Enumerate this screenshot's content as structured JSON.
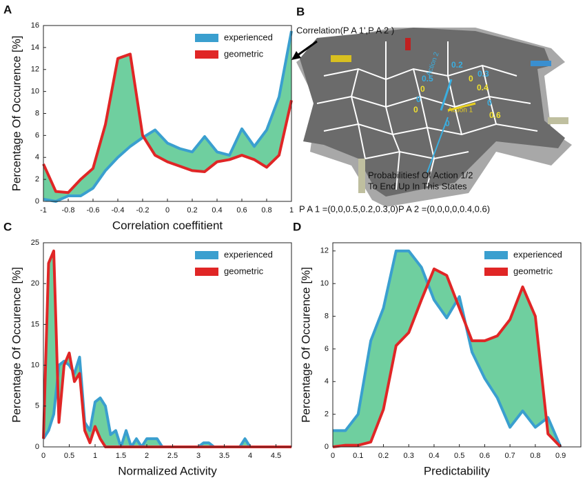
{
  "chart_data": [
    {
      "type": "line",
      "panel": "A",
      "x_label": "Correlation coeffitient",
      "y_label": "Percentage Of Occurence [%]",
      "x": [
        -1,
        -0.9,
        -0.8,
        -0.7,
        -0.6,
        -0.5,
        -0.4,
        -0.3,
        -0.2,
        -0.1,
        0,
        0.1,
        0.2,
        0.3,
        0.4,
        0.5,
        0.6,
        0.7,
        0.8,
        0.9,
        1
      ],
      "series": [
        {
          "name": "experienced",
          "color": "#3a9fcf",
          "values": [
            0.2,
            0,
            0.5,
            0.5,
            1.2,
            2.8,
            4,
            5,
            5.8,
            6.5,
            5.3,
            4.8,
            4.5,
            5.9,
            4.5,
            4.2,
            6.6,
            5,
            6.5,
            9.5,
            15.5
          ]
        },
        {
          "name": "geometric",
          "color": "#e02626",
          "values": [
            3.4,
            0.9,
            0.8,
            2,
            3,
            7,
            13,
            13.4,
            6,
            4.2,
            3.6,
            3.2,
            2.8,
            2.7,
            3.6,
            3.8,
            4.2,
            3.8,
            3.1,
            4.2,
            9.2
          ]
        }
      ],
      "fill_color": "#6fcf9f",
      "xlim": [
        -1,
        1
      ],
      "ylim": [
        0,
        16
      ],
      "xticks": [
        -1,
        -0.8,
        -0.6,
        -0.4,
        -0.2,
        0,
        0.2,
        0.4,
        0.6,
        0.8,
        1
      ],
      "yticks": [
        0,
        2,
        4,
        6,
        8,
        10,
        12,
        14,
        16
      ],
      "legend": "upper right"
    },
    {
      "type": "line",
      "panel": "C",
      "x_label": "Normalized Activity",
      "y_label": "Percentage Of Occurence [%]",
      "x": [
        0,
        0.1,
        0.2,
        0.3,
        0.4,
        0.5,
        0.6,
        0.7,
        0.8,
        0.9,
        1,
        1.1,
        1.2,
        1.3,
        1.4,
        1.5,
        1.6,
        1.7,
        1.8,
        1.9,
        2,
        2.1,
        2.2,
        2.3,
        3,
        3.1,
        3.2,
        3.3,
        3.8,
        3.9,
        4,
        4.8
      ],
      "series": [
        {
          "name": "experienced",
          "color": "#3a9fcf",
          "values": [
            1,
            2,
            4,
            10,
            10.5,
            10,
            9,
            11,
            3,
            2,
            5.5,
            6,
            5,
            1.5,
            2,
            0,
            2,
            0,
            1,
            0,
            1,
            1,
            1,
            0,
            0,
            0.5,
            0.5,
            0,
            0,
            1,
            0,
            0
          ]
        },
        {
          "name": "geometric",
          "color": "#e02626",
          "values": [
            1,
            22.5,
            24,
            3,
            10,
            11.5,
            8,
            9,
            2,
            0.5,
            2.5,
            1,
            0,
            0,
            0,
            0,
            0,
            0,
            0,
            0,
            0,
            0,
            0,
            0,
            0,
            0,
            0,
            0,
            0,
            0,
            0,
            0
          ]
        }
      ],
      "fill_color": "#6fcf9f",
      "xlim": [
        0,
        4.8
      ],
      "ylim": [
        0,
        25
      ],
      "xticks": [
        0,
        0.5,
        1,
        1.5,
        2,
        2.5,
        3,
        3.5,
        4,
        4.5
      ],
      "yticks": [
        0,
        5,
        10,
        15,
        20,
        25
      ],
      "legend": "upper right"
    },
    {
      "type": "line",
      "panel": "D",
      "x_label": "Predictability",
      "y_label": "Percentage Of Occurence [%]",
      "x": [
        0,
        0.05,
        0.1,
        0.15,
        0.2,
        0.25,
        0.3,
        0.35,
        0.4,
        0.45,
        0.5,
        0.55,
        0.6,
        0.65,
        0.7,
        0.75,
        0.8,
        0.85,
        0.9
      ],
      "series": [
        {
          "name": "experienced",
          "color": "#3a9fcf",
          "values": [
            1,
            1,
            2,
            6.5,
            8.5,
            12,
            12,
            11,
            9,
            7.9,
            9.2,
            5.8,
            4.2,
            3,
            1.2,
            2.2,
            1.2,
            1.8,
            0
          ]
        },
        {
          "name": "geometric",
          "color": "#e02626",
          "values": [
            0,
            0.1,
            0.1,
            0.3,
            2.3,
            6.2,
            7,
            9,
            10.9,
            10.5,
            8.5,
            6.5,
            6.5,
            6.8,
            7.8,
            9.8,
            8,
            0.8,
            0
          ]
        }
      ],
      "fill_color": "#6fcf9f",
      "xlim": [
        0,
        0.98
      ],
      "ylim": [
        0,
        12.5
      ],
      "xticks": [
        0,
        0.1,
        0.2,
        0.3,
        0.4,
        0.5,
        0.6,
        0.7,
        0.8,
        0.9
      ],
      "yticks": [
        0,
        2,
        4,
        6,
        8,
        10,
        12
      ],
      "legend": "upper right"
    }
  ],
  "panel_b": {
    "panel": "B",
    "title": "Correlation(P A 1',P A 2 )",
    "action_2": "Action 2",
    "action_1": "Action 1",
    "cyan_labels": [
      "0.5",
      "0.2",
      "0.3",
      "0",
      "0",
      "0"
    ],
    "yellow_labels": [
      "0",
      "0",
      "0.4",
      "0.6",
      "0"
    ],
    "note": [
      "Probabilitiesf Of Action 1/2",
      "To End Up In This States"
    ],
    "formula": "P A 1 =(0,0,0.5,0.2,0.3,0)P A 2 =(0,0,0,0,0.4,0.6)"
  }
}
